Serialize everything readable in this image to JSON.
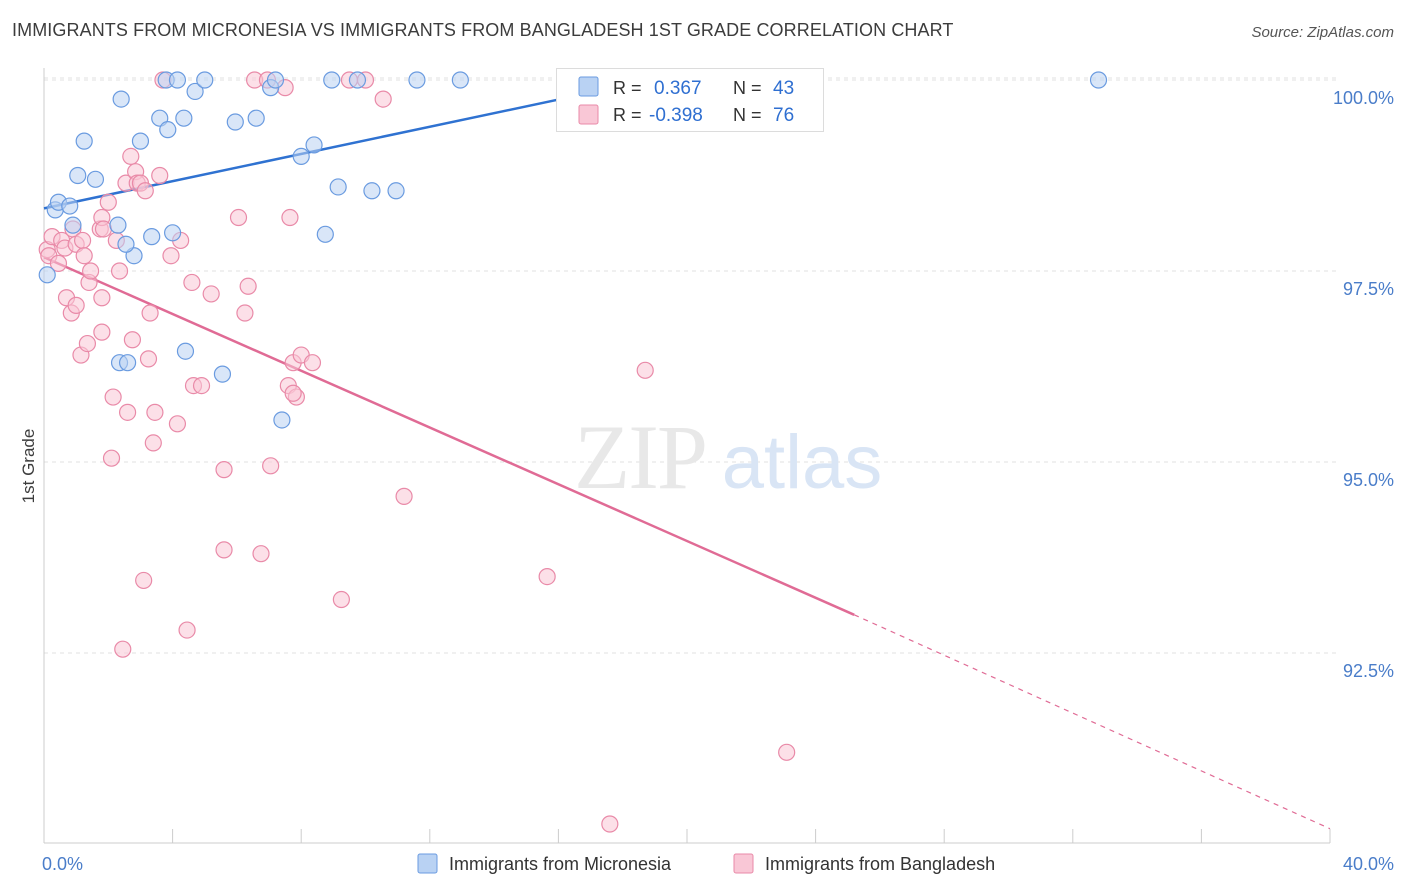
{
  "title": "IMMIGRANTS FROM MICRONESIA VS IMMIGRANTS FROM BANGLADESH 1ST GRADE CORRELATION CHART",
  "source": "Source: ZipAtlas.com",
  "watermark": {
    "zip": "ZIP",
    "atlas": "atlas"
  },
  "colors": {
    "micronesia_fill": "#b9d2f3",
    "micronesia_stroke": "#6a9be0",
    "micronesia_line": "#2f72d1",
    "bangladesh_fill": "#f9c7d6",
    "bangladesh_stroke": "#e98aa8",
    "bangladesh_line": "#e06b95",
    "tick_label": "#4a7dc9",
    "grid": "#e2e2e2"
  },
  "legend": {
    "rows": [
      {
        "r_label": "R = ",
        "r_value": "0.367",
        "n_label": "N = ",
        "n_value": "43"
      },
      {
        "r_label": "R = ",
        "r_value": "-0.398",
        "n_label": "N = ",
        "n_value": "76"
      }
    ]
  },
  "chart_data": {
    "type": "scatter",
    "xlabel": "",
    "ylabel": "1st Grade",
    "xlim": [
      0,
      40
    ],
    "ylim": [
      90.2,
      100.6
    ],
    "x_tick_labels": [
      {
        "value": 0,
        "label": "0.0%"
      },
      {
        "value": 40,
        "label": "40.0%"
      }
    ],
    "y_ticks": [
      {
        "value": 100,
        "label": "100.0%"
      },
      {
        "value": 97.5,
        "label": "97.5%"
      },
      {
        "value": 95,
        "label": "95.0%"
      },
      {
        "value": 92.5,
        "label": "92.5%"
      }
    ],
    "x_minor_ticks": [
      0,
      4,
      8,
      12,
      16,
      20,
      24,
      28,
      32,
      36,
      40
    ],
    "grid": true,
    "legend_position": "bottom",
    "series": [
      {
        "name": "Immigrants from Micronesia",
        "trend": {
          "x0": 0,
          "y0": 98.32,
          "x1": 20,
          "y1": 100.1,
          "dashed_to": null
        },
        "points": [
          [
            0.1,
            97.45
          ],
          [
            0.35,
            98.3
          ],
          [
            0.45,
            98.4
          ],
          [
            0.8,
            98.35
          ],
          [
            0.9,
            98.1
          ],
          [
            1.05,
            98.75
          ],
          [
            1.25,
            99.2
          ],
          [
            1.6,
            98.7
          ],
          [
            2.4,
            99.75
          ],
          [
            2.3,
            98.1
          ],
          [
            2.8,
            97.7
          ],
          [
            2.55,
            97.85
          ],
          [
            3.0,
            99.2
          ],
          [
            2.35,
            96.3
          ],
          [
            2.6,
            96.3
          ],
          [
            3.6,
            99.5
          ],
          [
            3.85,
            99.35
          ],
          [
            4.0,
            98.0
          ],
          [
            4.4,
            96.45
          ],
          [
            3.35,
            97.95
          ],
          [
            4.35,
            99.5
          ],
          [
            3.8,
            100.0
          ],
          [
            4.15,
            100.0
          ],
          [
            4.7,
            99.85
          ],
          [
            5.0,
            100.0
          ],
          [
            5.55,
            96.15
          ],
          [
            5.95,
            99.45
          ],
          [
            6.6,
            99.5
          ],
          [
            7.05,
            99.9
          ],
          [
            7.2,
            100.0
          ],
          [
            7.4,
            95.55
          ],
          [
            8.0,
            99.0
          ],
          [
            8.4,
            99.15
          ],
          [
            8.75,
            97.98
          ],
          [
            8.95,
            100.0
          ],
          [
            9.15,
            98.6
          ],
          [
            9.75,
            100.0
          ],
          [
            10.2,
            98.55
          ],
          [
            10.95,
            98.55
          ],
          [
            11.6,
            100.0
          ],
          [
            12.95,
            100.0
          ],
          [
            19.45,
            100.0
          ],
          [
            32.8,
            100.0
          ]
        ]
      },
      {
        "name": "Immigrants from Bangladesh",
        "trend": {
          "x0": 0,
          "y0": 97.68,
          "x1": 25.2,
          "y1": 93.0,
          "dashed_to": {
            "x": 40,
            "y": 90.2
          }
        },
        "points": [
          [
            0.1,
            97.78
          ],
          [
            0.15,
            97.7
          ],
          [
            0.25,
            97.95
          ],
          [
            0.45,
            97.6
          ],
          [
            0.55,
            97.9
          ],
          [
            0.65,
            97.8
          ],
          [
            0.9,
            98.05
          ],
          [
            0.7,
            97.15
          ],
          [
            0.85,
            96.95
          ],
          [
            1.0,
            97.05
          ],
          [
            1.0,
            97.85
          ],
          [
            1.2,
            97.9
          ],
          [
            1.25,
            97.7
          ],
          [
            1.15,
            96.4
          ],
          [
            1.35,
            96.55
          ],
          [
            1.4,
            97.35
          ],
          [
            1.45,
            97.5
          ],
          [
            1.75,
            98.05
          ],
          [
            1.8,
            98.2
          ],
          [
            1.85,
            98.05
          ],
          [
            1.8,
            97.15
          ],
          [
            1.8,
            96.7
          ],
          [
            2.0,
            98.4
          ],
          [
            2.1,
            95.05
          ],
          [
            2.15,
            95.85
          ],
          [
            2.25,
            97.9
          ],
          [
            2.35,
            97.5
          ],
          [
            2.45,
            92.55
          ],
          [
            2.55,
            98.65
          ],
          [
            2.6,
            95.65
          ],
          [
            2.7,
            99.0
          ],
          [
            2.75,
            96.6
          ],
          [
            2.85,
            98.8
          ],
          [
            2.9,
            98.65
          ],
          [
            3.0,
            98.65
          ],
          [
            3.15,
            98.55
          ],
          [
            3.1,
            93.45
          ],
          [
            3.25,
            96.35
          ],
          [
            3.3,
            96.95
          ],
          [
            3.4,
            95.25
          ],
          [
            3.45,
            95.65
          ],
          [
            3.6,
            98.75
          ],
          [
            3.7,
            100.0
          ],
          [
            3.95,
            97.7
          ],
          [
            4.15,
            95.5
          ],
          [
            4.25,
            97.9
          ],
          [
            4.45,
            92.8
          ],
          [
            4.6,
            97.35
          ],
          [
            4.65,
            96.0
          ],
          [
            4.9,
            96.0
          ],
          [
            5.2,
            97.2
          ],
          [
            5.6,
            94.9
          ],
          [
            5.6,
            93.85
          ],
          [
            6.05,
            98.2
          ],
          [
            6.35,
            97.3
          ],
          [
            6.25,
            96.95
          ],
          [
            6.55,
            100.0
          ],
          [
            6.75,
            93.8
          ],
          [
            6.95,
            100.0
          ],
          [
            7.05,
            94.95
          ],
          [
            7.5,
            99.9
          ],
          [
            7.6,
            96.0
          ],
          [
            7.85,
            95.85
          ],
          [
            7.75,
            95.9
          ],
          [
            7.65,
            98.2
          ],
          [
            7.75,
            96.3
          ],
          [
            8.0,
            96.4
          ],
          [
            8.35,
            96.3
          ],
          [
            9.25,
            93.2
          ],
          [
            9.5,
            100.0
          ],
          [
            10.0,
            100.0
          ],
          [
            10.55,
            99.75
          ],
          [
            11.2,
            94.55
          ],
          [
            15.65,
            93.5
          ],
          [
            18.7,
            96.2
          ],
          [
            23.1,
            91.2
          ]
        ]
      }
    ],
    "outlier_below_axis": {
      "series": "Immigrants from Bangladesh",
      "x": 17.6,
      "y": 90.05
    }
  },
  "bottom_legend": [
    {
      "label": "Immigrants from Micronesia"
    },
    {
      "label": "Immigrants from Bangladesh"
    }
  ]
}
